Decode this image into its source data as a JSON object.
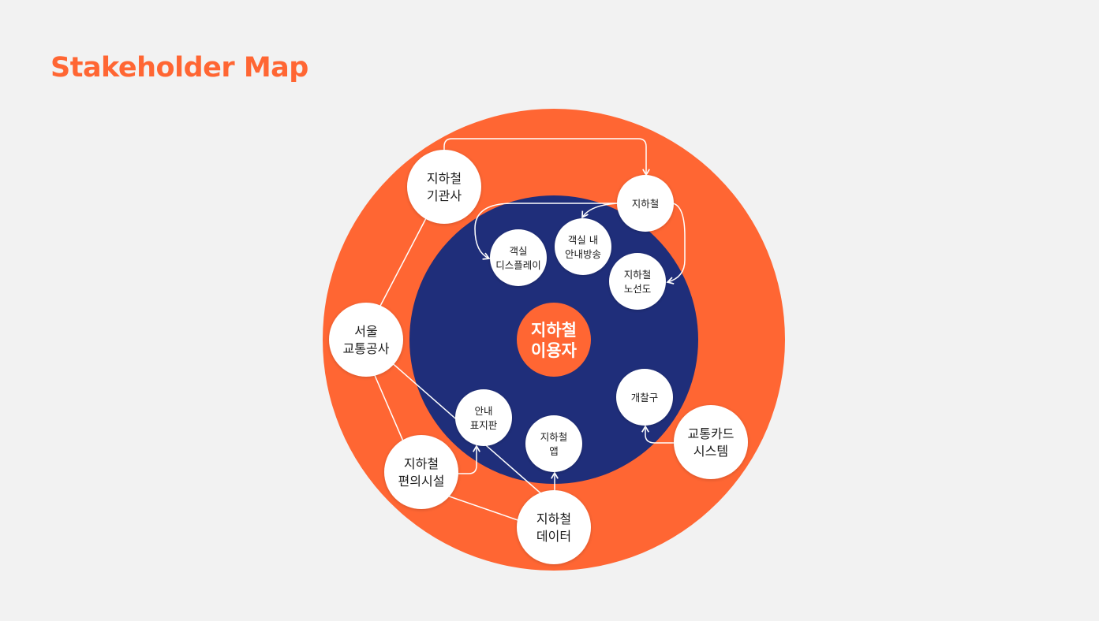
{
  "title": "Stakeholder Map",
  "colors": {
    "background": "#f2f2f2",
    "accent": "#ff6633",
    "inner_ring": "#1f2e7a",
    "node_fill": "#ffffff",
    "connector": "#ffffff"
  },
  "center": {
    "line1": "지하철",
    "line2": "이용자"
  },
  "nodes": {
    "agency": {
      "line1": "지하철",
      "line2": "기관사"
    },
    "seoul_metro": {
      "line1": "서울",
      "line2": "교통공사"
    },
    "facilities": {
      "line1": "지하철",
      "line2": "편의시설"
    },
    "data": {
      "line1": "지하철",
      "line2": "데이터"
    },
    "transit_card": {
      "line1": "교통카드",
      "line2": "시스템"
    },
    "subway": {
      "line1": "지하철"
    },
    "cabin_display": {
      "line1": "객실",
      "line2": "디스플레이"
    },
    "cabin_announcement": {
      "line1": "객실 내",
      "line2": "안내방송"
    },
    "route_map": {
      "line1": "지하철",
      "line2": "노선도"
    },
    "guide_sign": {
      "line1": "안내",
      "line2": "표지판"
    },
    "app": {
      "line1": "지하철",
      "line2": "앱"
    },
    "gate": {
      "line1": "개찰구"
    }
  }
}
